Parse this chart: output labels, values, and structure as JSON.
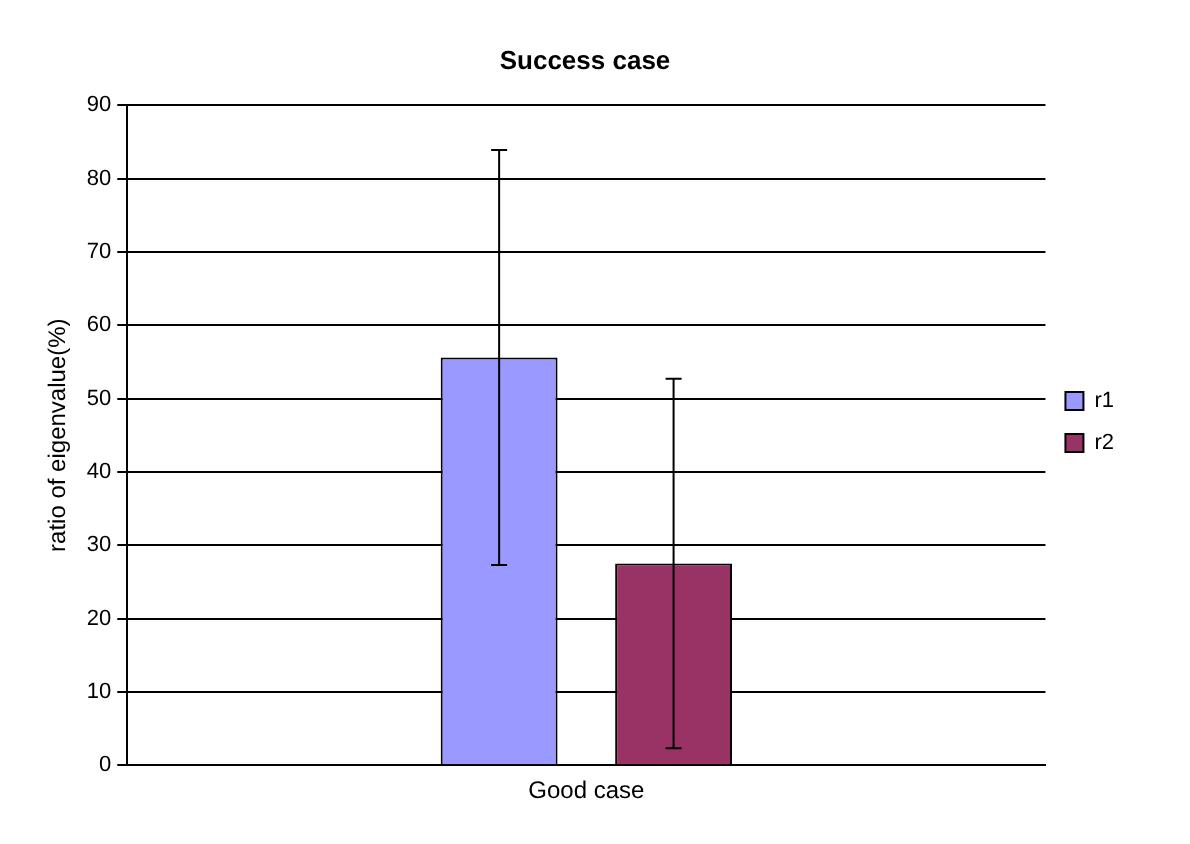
{
  "chart_data": {
    "type": "bar",
    "title": "Success case",
    "ylabel": "ratio of eigenvalue(%)",
    "categories": [
      "Good case"
    ],
    "series": [
      {
        "name": "r1",
        "color": "#9999ff",
        "values": [
          55.6
        ],
        "errors": [
          28.3
        ]
      },
      {
        "name": "r2",
        "color": "#993366",
        "values": [
          27.5
        ],
        "errors": [
          25.2
        ]
      }
    ],
    "ylim": [
      0,
      90
    ],
    "yticks": [
      0,
      10,
      20,
      30,
      40,
      50,
      60,
      70,
      80,
      90
    ],
    "grid": "y",
    "legend": "right"
  }
}
